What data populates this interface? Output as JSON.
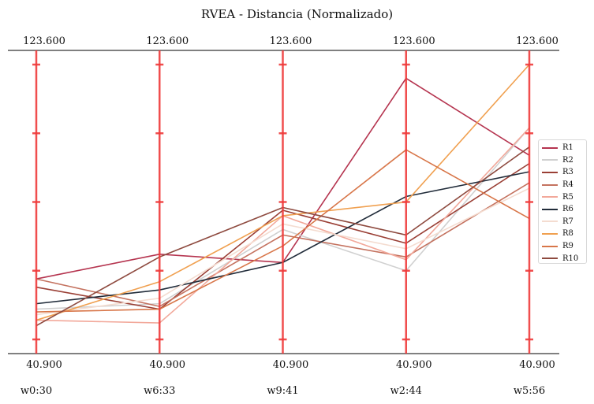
{
  "chart_data": {
    "type": "parallel_coordinates",
    "title": "RVEA - Distancia (Normalizado)",
    "axes": [
      {
        "label": "w0:30",
        "top": "123.600",
        "bottom": "40.900"
      },
      {
        "label": "w6:33",
        "top": "123.600",
        "bottom": "40.900"
      },
      {
        "label": "w9:41",
        "top": "123.600",
        "bottom": "40.900"
      },
      {
        "label": "w2:44",
        "top": "123.600",
        "bottom": "40.900"
      },
      {
        "label": "w5:56",
        "top": "123.600",
        "bottom": "40.900"
      }
    ],
    "ylim": [
      0,
      1
    ],
    "axis_color": "#ef3b3b",
    "series": [
      {
        "name": "R1",
        "color": "#b5344f",
        "values": [
          0.22,
          0.31,
          0.28,
          0.95,
          0.67
        ]
      },
      {
        "name": "R2",
        "color": "#d0d0d0",
        "values": [
          0.11,
          0.13,
          0.4,
          0.25,
          0.77
        ]
      },
      {
        "name": "R3",
        "color": "#9a3f35",
        "values": [
          0.19,
          0.11,
          0.47,
          0.35,
          0.64
        ]
      },
      {
        "name": "R4",
        "color": "#c4725f",
        "values": [
          0.22,
          0.12,
          0.38,
          0.3,
          0.57
        ]
      },
      {
        "name": "R5",
        "color": "#f2a89a",
        "values": [
          0.07,
          0.06,
          0.45,
          0.29,
          0.77
        ]
      },
      {
        "name": "R6",
        "color": "#212c3a",
        "values": [
          0.13,
          0.18,
          0.28,
          0.52,
          0.61
        ]
      },
      {
        "name": "R7",
        "color": "#f4dcd0",
        "values": [
          0.09,
          0.15,
          0.42,
          0.33,
          0.55
        ]
      },
      {
        "name": "R8",
        "color": "#f0a050",
        "values": [
          0.07,
          0.21,
          0.45,
          0.5,
          1.0
        ]
      },
      {
        "name": "R9",
        "color": "#d87649",
        "values": [
          0.1,
          0.11,
          0.34,
          0.69,
          0.44
        ]
      },
      {
        "name": "R10",
        "color": "#8e4a3f",
        "values": [
          0.05,
          0.3,
          0.48,
          0.38,
          0.7
        ]
      }
    ]
  }
}
